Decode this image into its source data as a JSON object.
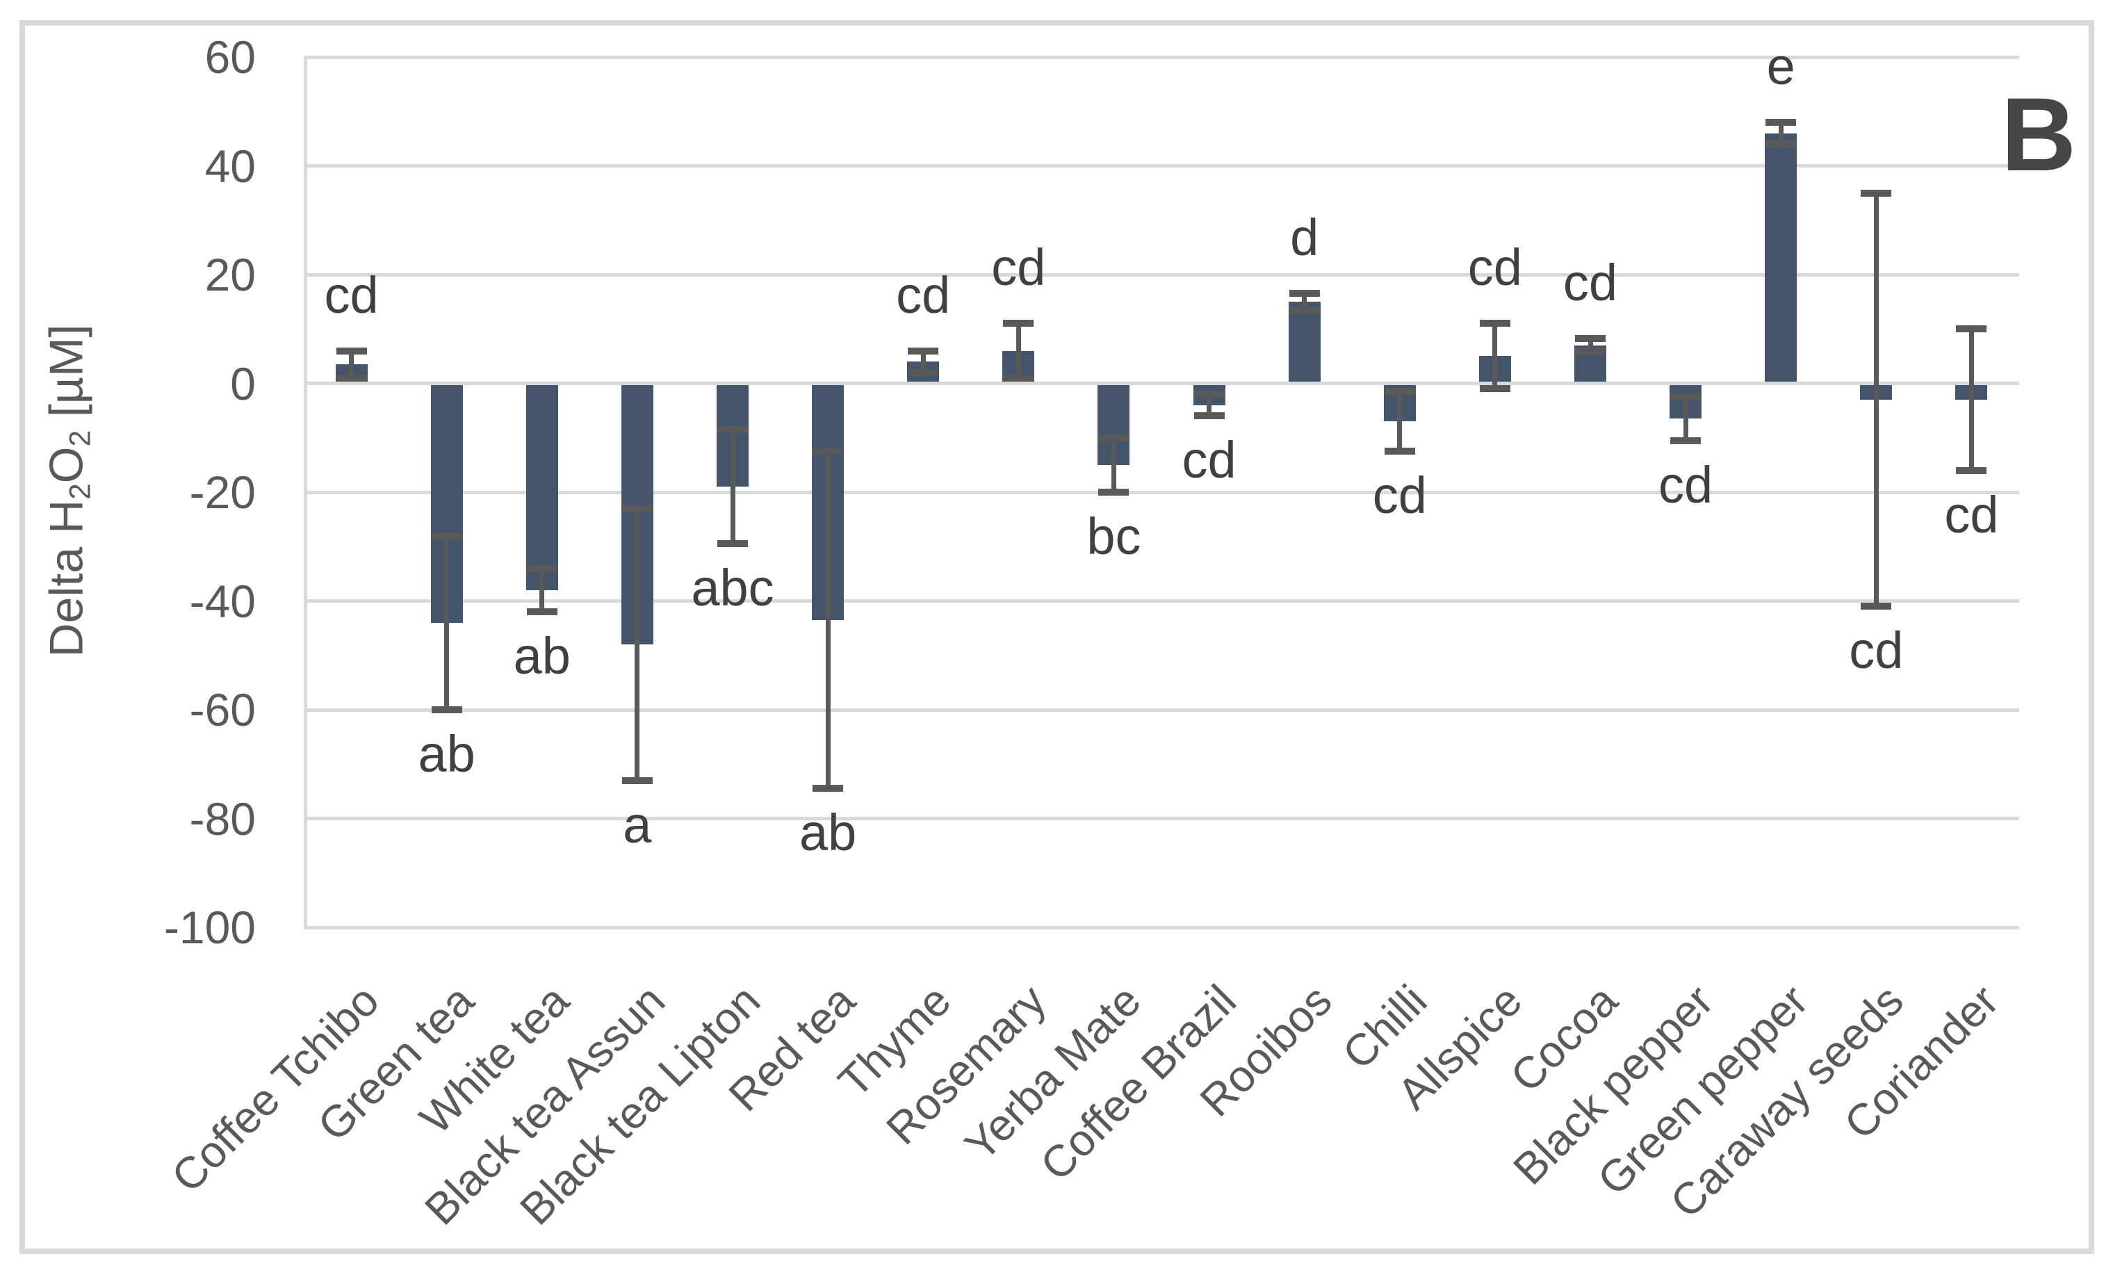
{
  "panel_label": "B",
  "y_axis": {
    "title_text": "Delta H2O2 [µM]",
    "title_parts": [
      {
        "text": "Delta H"
      },
      {
        "text": "2",
        "sub": true
      },
      {
        "text": "O"
      },
      {
        "text": "2",
        "sub": true
      },
      {
        "text": " [µM]"
      }
    ],
    "ticks": [
      60,
      40,
      20,
      0,
      -20,
      -40,
      -60,
      -80,
      -100
    ]
  },
  "chart_data": {
    "type": "bar",
    "title": "",
    "xlabel": "",
    "ylabel": "Delta H2O2 [µM]",
    "ylim": [
      -100,
      60
    ],
    "grid_step": 20,
    "grid": true,
    "legend": "none",
    "panel": "B",
    "categories": [
      "Coffee Tchibo",
      "Green tea",
      "White tea",
      "Black tea Assun",
      "Black tea Lipton",
      "Red tea",
      "Thyme",
      "Rosemary",
      "Yerba Mate",
      "Coffee Brazil",
      "Rooibos",
      "Chilli",
      "Allspice",
      "Cocoa",
      "Black pepper",
      "Green pepper",
      "Caraway seeds",
      "Coriander"
    ],
    "values": [
      3.5,
      -44,
      -38,
      -48,
      -19,
      -43.5,
      4,
      6,
      -15,
      -4,
      15,
      -7,
      5,
      7,
      -6.5,
      46,
      -3,
      -3
    ],
    "errors": [
      2.5,
      16,
      4,
      25,
      10.5,
      31,
      2,
      5,
      5,
      2,
      1.6,
      5.5,
      6,
      1.2,
      4,
      2,
      38,
      13
    ],
    "sig_letters": [
      "cd",
      "ab",
      "ab",
      "a",
      "abc",
      "ab",
      "cd",
      "cd",
      "bc",
      "cd",
      "d",
      "cd",
      "cd",
      "cd",
      "cd",
      "e",
      "cd",
      "cd"
    ]
  },
  "colors": {
    "bar": "#44546A",
    "error_bar": "#595959",
    "gridline": "#D9D9D9",
    "frame": "#D9D9D9",
    "tick_text": "#595959",
    "x_label_text": "#595959",
    "axis_title_text": "#595959",
    "letter_text": "#404040",
    "panel_text": "#464646",
    "background": "#FFFFFF"
  }
}
